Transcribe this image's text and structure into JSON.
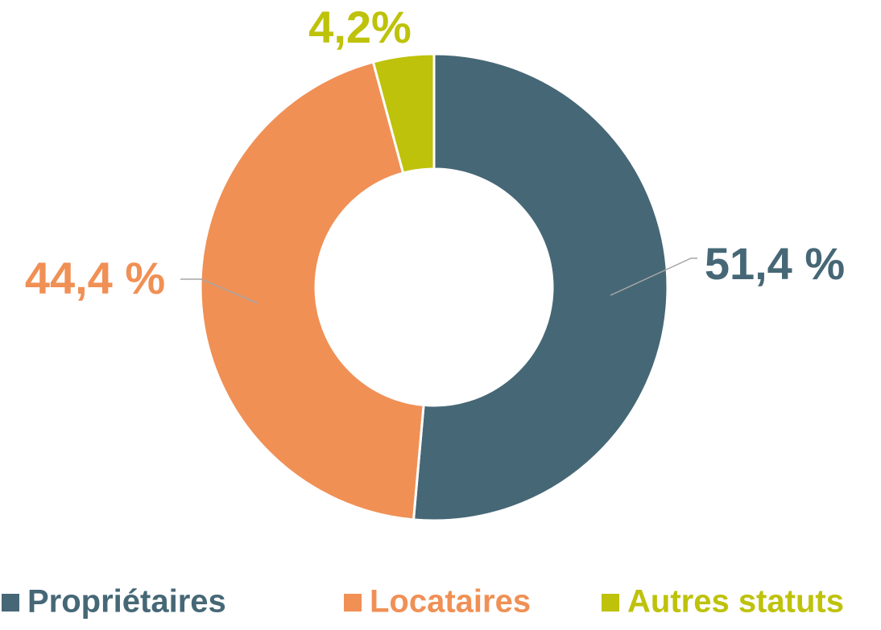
{
  "chart_data": {
    "type": "donut",
    "categories": [
      "Propriétaires",
      "Locataires",
      "Autres statuts"
    ],
    "values": [
      51.4,
      44.4,
      4.2
    ],
    "value_labels": [
      "51,4 %",
      "44,4 %",
      "4,2%"
    ],
    "colors": [
      "#466776",
      "#f09055",
      "#bec20a"
    ],
    "legend": "bottom"
  }
}
